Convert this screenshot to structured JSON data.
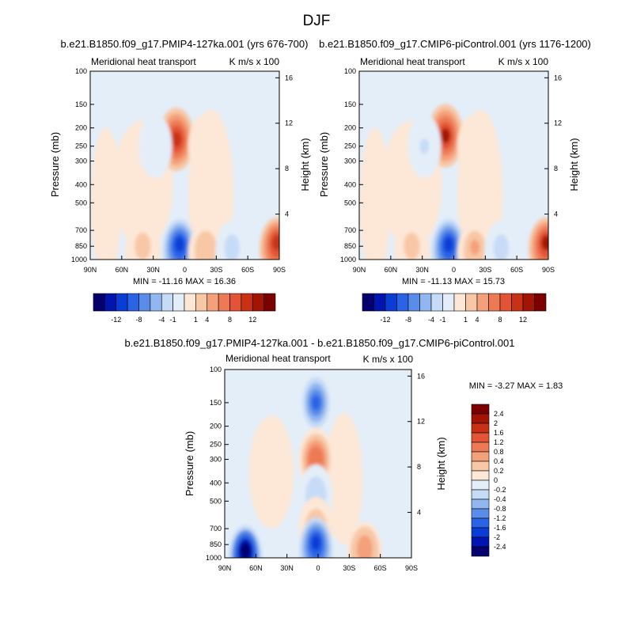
{
  "figure": {
    "title": "DJF"
  },
  "colors": {
    "blue_ramp": [
      "#05006e",
      "#0015b0",
      "#0a3cd6",
      "#2a63e6",
      "#5a8ce9",
      "#92b6ef",
      "#c6dbf6",
      "#e3eef9"
    ],
    "red_ramp": [
      "#fde7d6",
      "#f8c7a6",
      "#f4a07a",
      "#ee7a55",
      "#e35335",
      "#c93115",
      "#a41405",
      "#7c0000"
    ]
  },
  "panels": [
    {
      "title": "b.e21.B1850.f09_g17.PMIP4-127ka.001 (yrs 676-700)",
      "left_label": "Meridional heat transport",
      "right_label": "K m/s x 100",
      "ylabel": "Pressure (mb)",
      "y2label": "Height (km)",
      "stats": "MIN = -11.16  MAX = 16.36"
    },
    {
      "title": "b.e21.B1850.f09_g17.CMIP6-piControl.001 (yrs 1176-1200)",
      "left_label": "Meridional heat transport",
      "right_label": "K m/s x 100",
      "ylabel": "Pressure (mb)",
      "y2label": "Height (km)",
      "stats": "MIN = -11.13  MAX = 15.73"
    },
    {
      "title": "b.e21.B1850.f09_g17.PMIP4-127ka.001 - b.e21.B1850.f09_g17.CMIP6-piControl.001",
      "left_label": "Meridional heat transport",
      "right_label": "K m/s x 100",
      "ylabel": "Pressure (mb)",
      "y2label": "Height (km)",
      "stats": "MIN = -3.27  MAX =  1.83"
    }
  ],
  "chart_data": [
    {
      "type": "heatmap",
      "title": "b.e21.B1850.f09_g17.PMIP4-127ka.001 (yrs 676-700)",
      "xlabel": "",
      "ylabel": "Pressure (mb)",
      "y2label": "Height (km)",
      "x_ticks": [
        "90N",
        "60N",
        "30N",
        "0",
        "30S",
        "60S",
        "90S"
      ],
      "x_values": [
        90,
        60,
        30,
        0,
        -30,
        -60,
        -90
      ],
      "y_ticks": [
        100,
        150,
        200,
        250,
        300,
        400,
        500,
        700,
        850,
        1000
      ],
      "y_scale": "log",
      "y2_ticks": [
        16,
        12,
        8,
        4
      ],
      "units": "K m/s x 100",
      "min": -11.16,
      "max": 16.36,
      "features": [
        {
          "lat": 8,
          "p": 230,
          "value": 12,
          "sign": "positive"
        },
        {
          "lat": 28,
          "p": 250,
          "value": -2,
          "sign": "negative"
        },
        {
          "lat": -20,
          "p": 250,
          "value": 1.5,
          "sign": "positive"
        },
        {
          "lat": 5,
          "p": 900,
          "value": -11,
          "sign": "negative"
        },
        {
          "lat": 40,
          "p": 900,
          "value": 3,
          "sign": "positive"
        },
        {
          "lat": -20,
          "p": 930,
          "value": 4,
          "sign": "positive"
        },
        {
          "lat": -45,
          "p": 920,
          "value": -3,
          "sign": "negative"
        },
        {
          "lat": -88,
          "p": 880,
          "value": 12,
          "sign": "positive"
        }
      ]
    },
    {
      "type": "heatmap",
      "title": "b.e21.B1850.f09_g17.CMIP6-piControl.001 (yrs 1176-1200)",
      "xlabel": "",
      "ylabel": "Pressure (mb)",
      "y2label": "Height (km)",
      "x_ticks": [
        "90N",
        "60N",
        "30N",
        "0",
        "30S",
        "60S",
        "90S"
      ],
      "x_values": [
        90,
        60,
        30,
        0,
        -30,
        -60,
        -90
      ],
      "y_ticks": [
        100,
        150,
        200,
        250,
        300,
        400,
        500,
        700,
        850,
        1000
      ],
      "y_scale": "log",
      "y2_ticks": [
        16,
        12,
        8,
        4
      ],
      "units": "K m/s x 100",
      "min": -11.13,
      "max": 15.73,
      "features": [
        {
          "lat": 8,
          "p": 220,
          "value": 12,
          "sign": "positive"
        },
        {
          "lat": 28,
          "p": 250,
          "value": -2,
          "sign": "negative"
        },
        {
          "lat": -20,
          "p": 250,
          "value": 1.5,
          "sign": "positive"
        },
        {
          "lat": 5,
          "p": 900,
          "value": -11,
          "sign": "negative"
        },
        {
          "lat": 40,
          "p": 900,
          "value": 3,
          "sign": "positive"
        },
        {
          "lat": -20,
          "p": 930,
          "value": 4,
          "sign": "positive"
        },
        {
          "lat": -45,
          "p": 920,
          "value": -3,
          "sign": "negative"
        },
        {
          "lat": -88,
          "p": 880,
          "value": 12,
          "sign": "positive"
        }
      ]
    },
    {
      "type": "heatmap",
      "title": "b.e21.B1850.f09_g17.PMIP4-127ka.001 - b.e21.B1850.f09_g17.CMIP6-piControl.001",
      "xlabel": "",
      "ylabel": "Pressure (mb)",
      "y2label": "Height (km)",
      "x_ticks": [
        "90N",
        "60N",
        "30N",
        "0",
        "30S",
        "60S",
        "90S"
      ],
      "x_values": [
        90,
        60,
        30,
        0,
        -30,
        -60,
        -90
      ],
      "y_ticks": [
        100,
        150,
        200,
        250,
        300,
        400,
        500,
        700,
        850,
        1000
      ],
      "y_scale": "log",
      "y2_ticks": [
        16,
        12,
        8,
        4
      ],
      "units": "K m/s x 100",
      "min": -3.27,
      "max": 1.83,
      "features": [
        {
          "lat": 2,
          "p": 150,
          "value": -2,
          "sign": "negative"
        },
        {
          "lat": 2,
          "p": 300,
          "value": 1.6,
          "sign": "positive"
        },
        {
          "lat": 2,
          "p": 470,
          "value": -0.8,
          "sign": "negative"
        },
        {
          "lat": 2,
          "p": 700,
          "value": 0.8,
          "sign": "positive"
        },
        {
          "lat": 2,
          "p": 900,
          "value": -2.4,
          "sign": "negative"
        },
        {
          "lat": -45,
          "p": 950,
          "value": 1.2,
          "sign": "positive"
        },
        {
          "lat": 70,
          "p": 990,
          "value": -3.27,
          "sign": "negative"
        }
      ]
    }
  ],
  "colorbars": [
    {
      "orientation": "horizontal",
      "tick_labels": [
        "-12",
        "-8",
        "-4",
        "-1",
        "1",
        "4",
        "8",
        "12"
      ]
    },
    {
      "orientation": "horizontal",
      "tick_labels": [
        "-12",
        "-8",
        "-4",
        "-1",
        "1",
        "4",
        "8",
        "12"
      ]
    },
    {
      "orientation": "vertical",
      "tick_labels": [
        "2.4",
        "2",
        "1.6",
        "1.2",
        "0.8",
        "0.4",
        "0.2",
        "0",
        "-0.2",
        "-0.4",
        "-0.8",
        "-1.2",
        "-1.6",
        "-2",
        "-2.4"
      ]
    }
  ]
}
